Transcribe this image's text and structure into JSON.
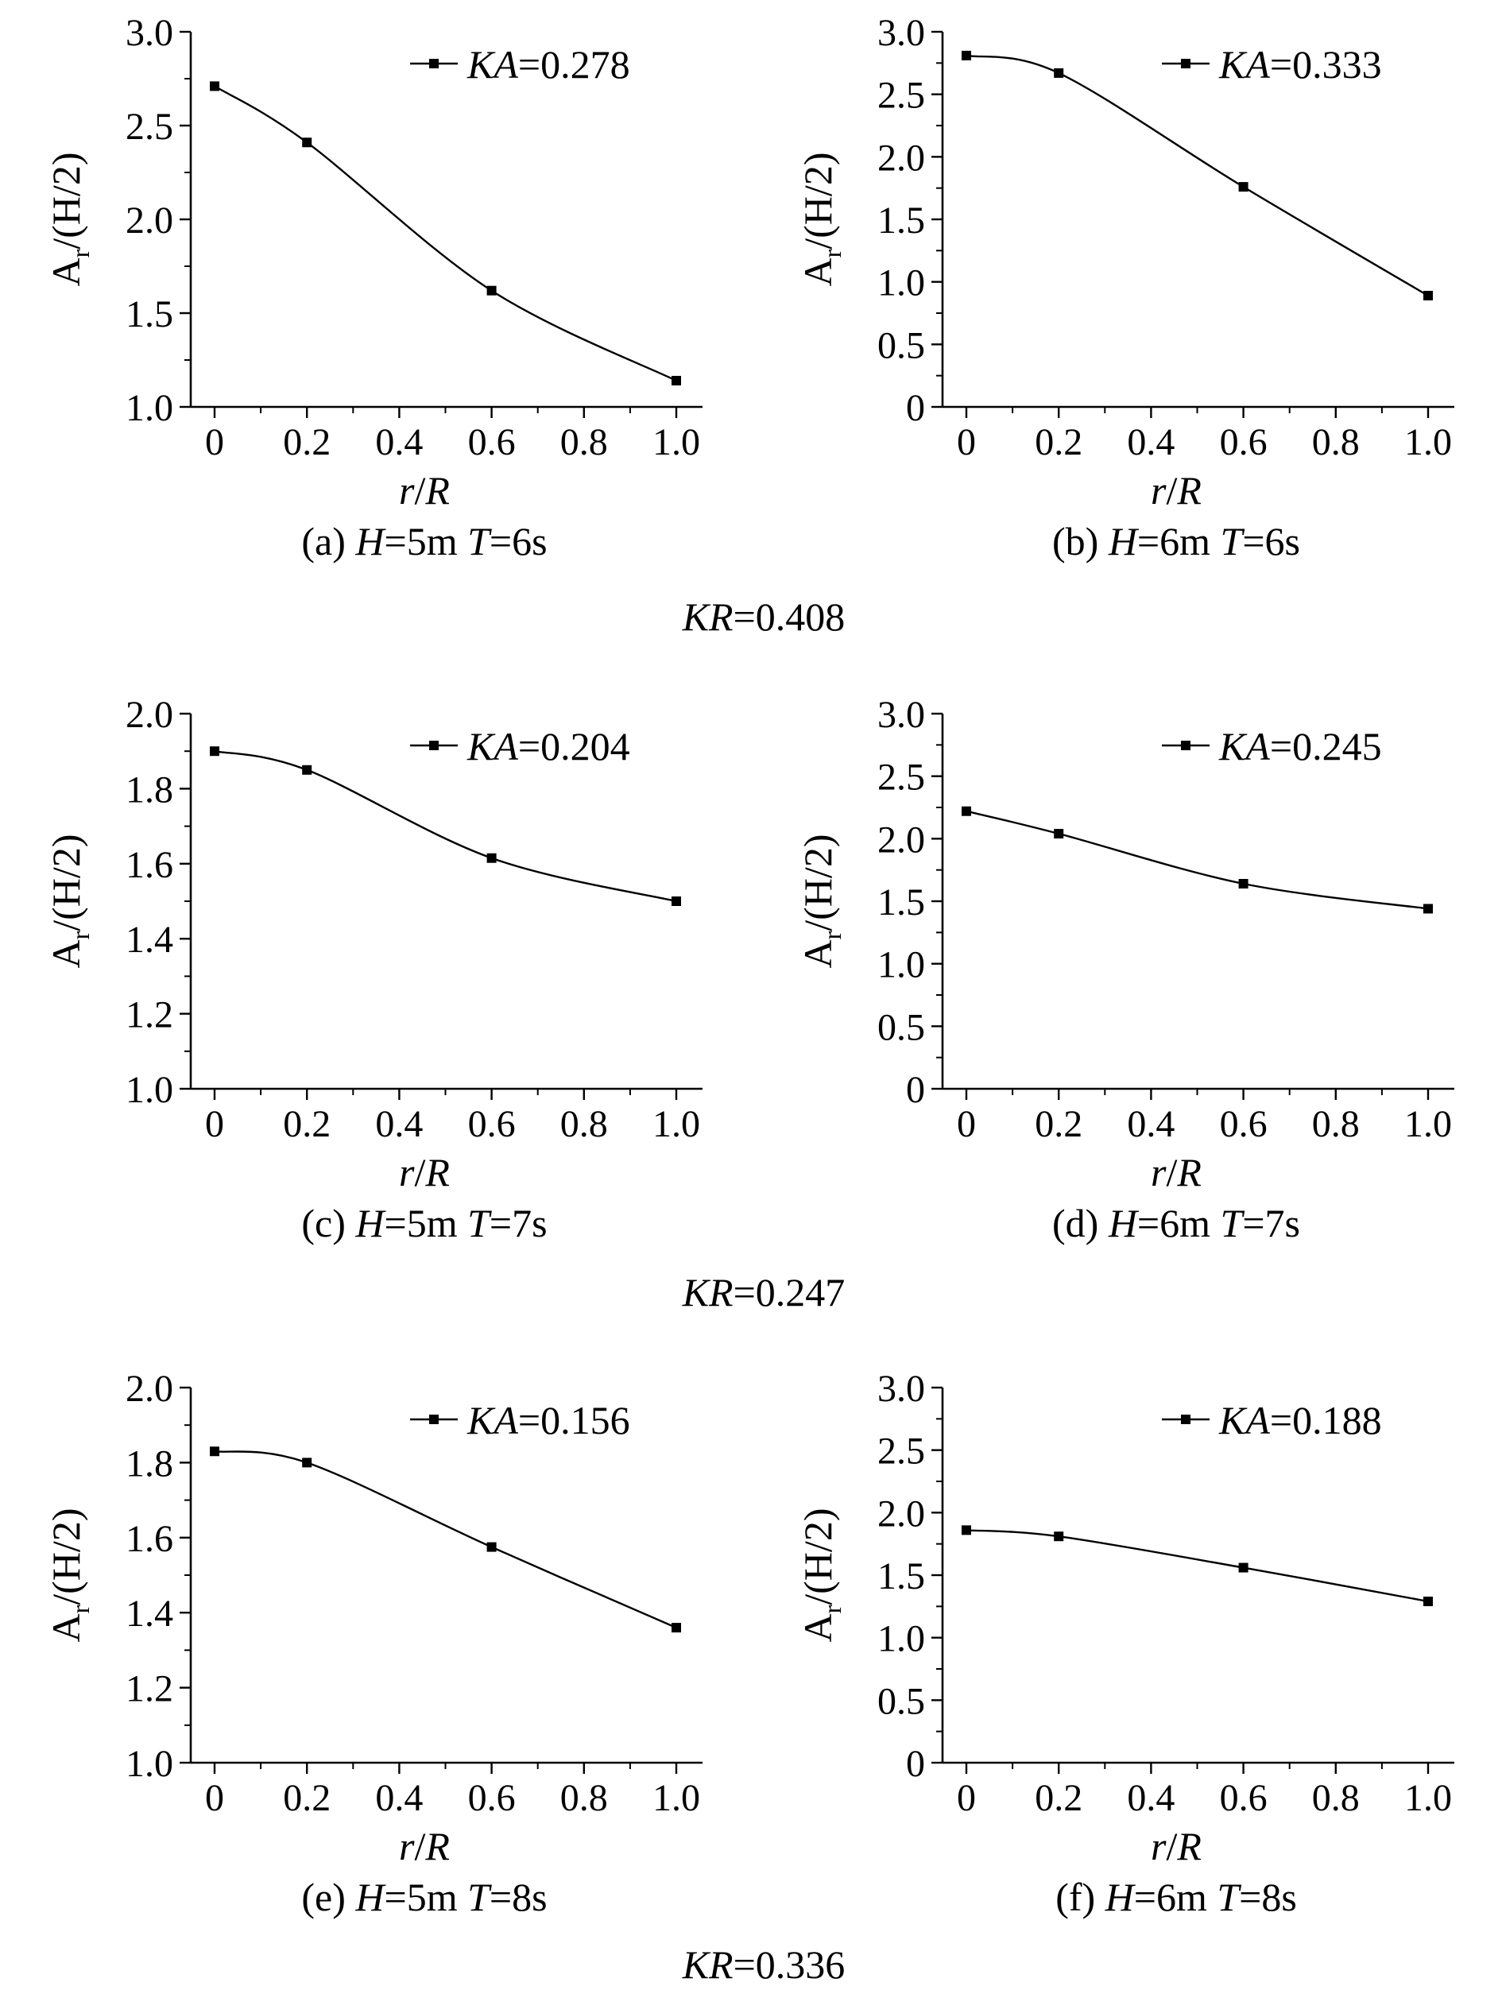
{
  "chart_data": [
    {
      "id": "a",
      "type": "line",
      "x": [
        0,
        0.2,
        0.6,
        1.0
      ],
      "values": [
        2.71,
        2.41,
        1.62,
        1.14
      ],
      "ylim": [
        1.0,
        3.0
      ],
      "yticks": [
        "1.0",
        "1.5",
        "2.0",
        "2.5",
        "3.0"
      ],
      "xticks": [
        "0",
        "0.2",
        "0.4",
        "0.6",
        "0.8",
        "1.0"
      ],
      "ylabel_main": "A",
      "ylabel_sub": "r",
      "ylabel_rest": "/(H/2)",
      "xlabel_var": "r",
      "xlabel_rest": "/",
      "xlabel_var2": "R",
      "legend_var": "KA",
      "legend_val": "=0.278",
      "caption_pre": "(a) ",
      "caption_h": "H",
      "caption_h_val": "=5m ",
      "caption_t": "T",
      "caption_t_val": "=6s"
    },
    {
      "id": "b",
      "type": "line",
      "x": [
        0,
        0.2,
        0.6,
        1.0
      ],
      "values": [
        2.81,
        2.67,
        1.76,
        0.89
      ],
      "ylim": [
        0,
        3.0
      ],
      "yticks": [
        "0",
        "0.5",
        "1.0",
        "1.5",
        "2.0",
        "2.5",
        "3.0"
      ],
      "xticks": [
        "0",
        "0.2",
        "0.4",
        "0.6",
        "0.8",
        "1.0"
      ],
      "ylabel_main": "A",
      "ylabel_sub": "r",
      "ylabel_rest": "/(H/2)",
      "xlabel_var": "r",
      "xlabel_rest": "/",
      "xlabel_var2": "R",
      "legend_var": "KA",
      "legend_val": "=0.333",
      "caption_pre": "(b) ",
      "caption_h": "H",
      "caption_h_val": "=6m ",
      "caption_t": "T",
      "caption_t_val": "=6s"
    },
    {
      "id": "c",
      "type": "line",
      "x": [
        0,
        0.2,
        0.6,
        1.0
      ],
      "values": [
        1.9,
        1.85,
        1.615,
        1.5
      ],
      "ylim": [
        1.0,
        2.0
      ],
      "yticks": [
        "1.0",
        "1.2",
        "1.4",
        "1.6",
        "1.8",
        "2.0"
      ],
      "xticks": [
        "0",
        "0.2",
        "0.4",
        "0.6",
        "0.8",
        "1.0"
      ],
      "ylabel_main": "A",
      "ylabel_sub": "r",
      "ylabel_rest": "/(H/2)",
      "xlabel_var": "r",
      "xlabel_rest": "/",
      "xlabel_var2": "R",
      "legend_var": "KA",
      "legend_val": "=0.204",
      "caption_pre": "(c) ",
      "caption_h": "H",
      "caption_h_val": "=5m ",
      "caption_t": "T",
      "caption_t_val": "=7s"
    },
    {
      "id": "d",
      "type": "line",
      "x": [
        0,
        0.2,
        0.6,
        1.0
      ],
      "values": [
        2.22,
        2.04,
        1.64,
        1.44
      ],
      "ylim": [
        0,
        3.0
      ],
      "yticks": [
        "0",
        "0.5",
        "1.0",
        "1.5",
        "2.0",
        "2.5",
        "3.0"
      ],
      "xticks": [
        "0",
        "0.2",
        "0.4",
        "0.6",
        "0.8",
        "1.0"
      ],
      "ylabel_main": "A",
      "ylabel_sub": "r",
      "ylabel_rest": "/(H/2)",
      "xlabel_var": "r",
      "xlabel_rest": "/",
      "xlabel_var2": "R",
      "legend_var": "KA",
      "legend_val": "=0.245",
      "caption_pre": "(d) ",
      "caption_h": "H",
      "caption_h_val": "=6m ",
      "caption_t": "T",
      "caption_t_val": "=7s"
    },
    {
      "id": "e",
      "type": "line",
      "x": [
        0,
        0.2,
        0.6,
        1.0
      ],
      "values": [
        1.83,
        1.8,
        1.575,
        1.36
      ],
      "ylim": [
        1.0,
        2.0
      ],
      "yticks": [
        "1.0",
        "1.2",
        "1.4",
        "1.6",
        "1.8",
        "2.0"
      ],
      "xticks": [
        "0",
        "0.2",
        "0.4",
        "0.6",
        "0.8",
        "1.0"
      ],
      "ylabel_main": "A",
      "ylabel_sub": "r",
      "ylabel_rest": "/(H/2)",
      "xlabel_var": "r",
      "xlabel_rest": "/",
      "xlabel_var2": "R",
      "legend_var": "KA",
      "legend_val": "=0.156",
      "caption_pre": "(e) ",
      "caption_h": "H",
      "caption_h_val": "=5m ",
      "caption_t": "T",
      "caption_t_val": "=8s"
    },
    {
      "id": "f",
      "type": "line",
      "x": [
        0,
        0.2,
        0.6,
        1.0
      ],
      "values": [
        1.86,
        1.81,
        1.56,
        1.29
      ],
      "ylim": [
        0,
        3.0
      ],
      "yticks": [
        "0",
        "0.5",
        "1.0",
        "1.5",
        "2.0",
        "2.5",
        "3.0"
      ],
      "xticks": [
        "0",
        "0.2",
        "0.4",
        "0.6",
        "0.8",
        "1.0"
      ],
      "ylabel_main": "A",
      "ylabel_sub": "r",
      "ylabel_rest": "/(H/2)",
      "xlabel_var": "r",
      "xlabel_rest": "/",
      "xlabel_var2": "R",
      "legend_var": "KA",
      "legend_val": "=0.188",
      "caption_pre": "(f) ",
      "caption_h": "H",
      "caption_h_val": "=6m ",
      "caption_t": "T",
      "caption_t_val": "=8s"
    }
  ],
  "group_labels": [
    {
      "var": "KR",
      "val": "=0.408"
    },
    {
      "var": "KR",
      "val": "=0.247"
    },
    {
      "var": "KR",
      "val": "=0.336"
    }
  ]
}
